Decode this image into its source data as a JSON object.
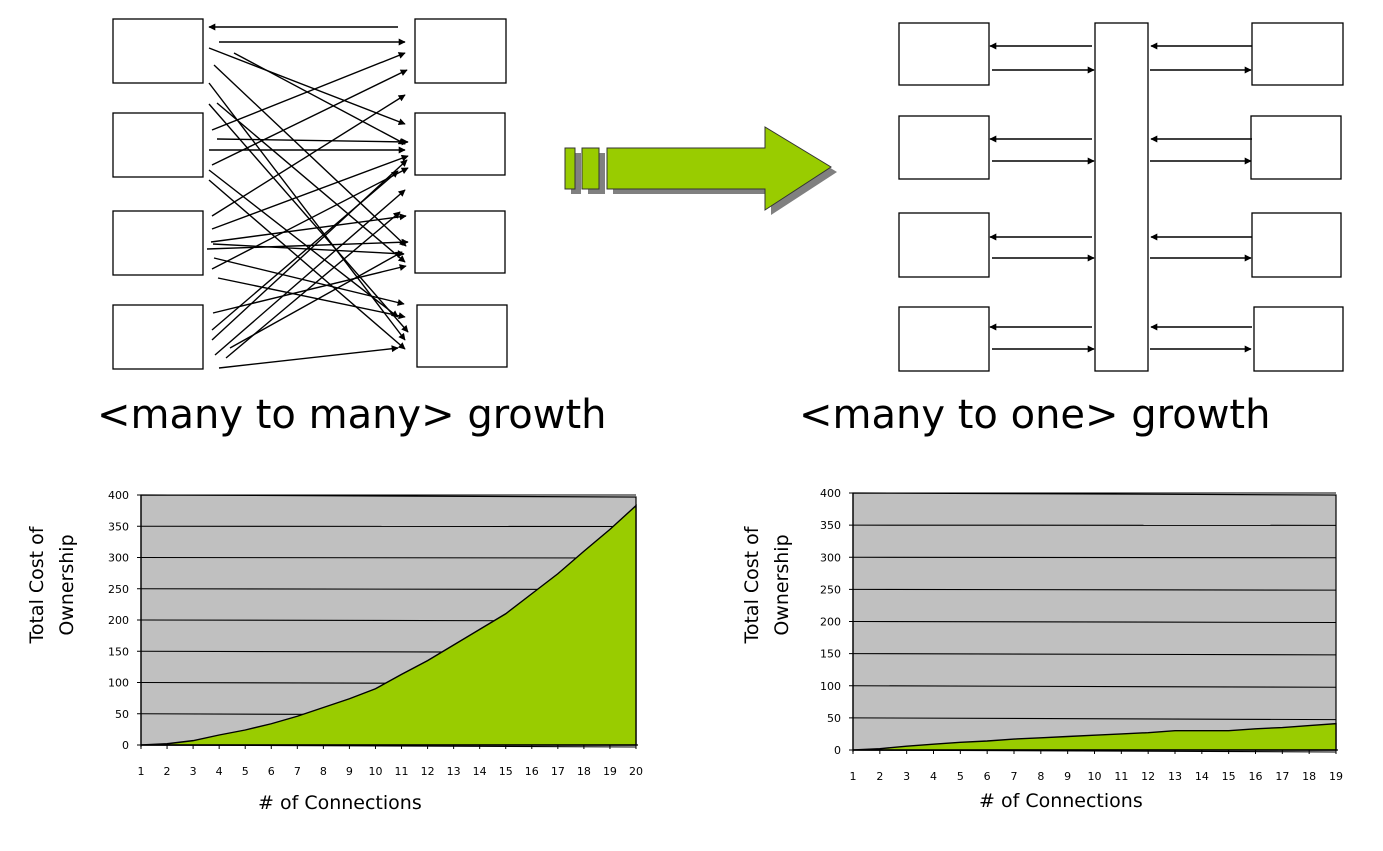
{
  "captions": {
    "left": "<many to many> growth",
    "right": "<many to one> growth"
  },
  "colors": {
    "fill": "#99cc00",
    "plot_bg": "#c0c0c0",
    "shadow": "#808080"
  },
  "chart_data": [
    {
      "type": "area",
      "ylabel": "Total Cost of Ownership",
      "xlabel": "# of Connections",
      "x": [
        1,
        2,
        3,
        4,
        5,
        6,
        7,
        8,
        9,
        10,
        11,
        12,
        13,
        14,
        15,
        16,
        17,
        18,
        19,
        20
      ],
      "values": [
        0,
        2,
        7,
        16,
        24,
        34,
        46,
        60,
        74,
        90,
        113,
        135,
        160,
        185,
        210,
        242,
        274,
        310,
        345,
        383
      ],
      "ylim": [
        0,
        400
      ],
      "yticks": [
        0,
        50,
        100,
        150,
        200,
        250,
        300,
        350,
        400
      ],
      "grid": true
    },
    {
      "type": "area",
      "ylabel": "Total Cost of Ownership",
      "xlabel": "# of Connections",
      "x": [
        1,
        2,
        3,
        4,
        5,
        6,
        7,
        8,
        9,
        10,
        11,
        12,
        13,
        14,
        15,
        16,
        17,
        18,
        19
      ],
      "values": [
        0,
        2,
        6,
        9,
        12,
        14,
        17,
        19,
        21,
        23,
        25,
        27,
        30,
        30,
        30,
        33,
        35,
        38,
        41
      ],
      "ylim": [
        0,
        400
      ],
      "yticks": [
        0,
        50,
        100,
        150,
        200,
        250,
        300,
        350,
        400
      ],
      "grid": true
    }
  ]
}
